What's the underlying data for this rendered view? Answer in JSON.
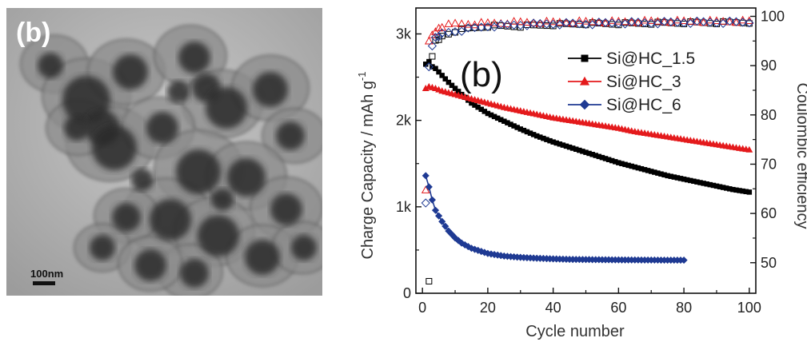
{
  "micrograph": {
    "panel_label": "(b)",
    "scale_bar_label": "100nm"
  },
  "chart_data": {
    "type": "line",
    "panel_label": "(b)",
    "xlabel": "Cycle number",
    "ylabel_left": "Charge Capacity / mAh g",
    "ylabel_left_sup": "-1",
    "ylabel_right": "Coulombic efficiency",
    "xlim": [
      -2,
      102
    ],
    "ylim_left": [
      0,
      3300
    ],
    "ylim_right": [
      43.8,
      101.7
    ],
    "x_ticks": [
      0,
      20,
      40,
      60,
      80,
      100
    ],
    "x_tick_labels": [
      "0",
      "20",
      "40",
      "60",
      "80",
      "100"
    ],
    "y_left_ticks": [
      0,
      1000,
      2000,
      3000
    ],
    "y_left_tick_labels": [
      "0",
      "1k",
      "2k",
      "3k"
    ],
    "y_right_ticks": [
      50,
      60,
      70,
      80,
      90,
      100
    ],
    "y_right_tick_labels": [
      "50",
      "60",
      "70",
      "80",
      "90",
      "100"
    ],
    "legend_position": "top-right",
    "series": [
      {
        "name": "Si@HC_1.5",
        "color": "#000000",
        "marker": "square",
        "capacity": {
          "x": [
            1,
            2,
            3,
            4,
            5,
            6,
            8,
            10,
            12,
            15,
            20,
            25,
            30,
            35,
            40,
            45,
            50,
            55,
            60,
            65,
            70,
            75,
            80,
            85,
            90,
            95,
            100
          ],
          "y": [
            2650,
            2680,
            2620,
            2600,
            2560,
            2520,
            2440,
            2370,
            2300,
            2200,
            2080,
            1990,
            1900,
            1820,
            1750,
            1690,
            1630,
            1570,
            1510,
            1460,
            1410,
            1360,
            1320,
            1280,
            1240,
            1200,
            1170
          ]
        },
        "efficiency": {
          "x": [
            2,
            3,
            4,
            6,
            8,
            10,
            14,
            20,
            30,
            40,
            50,
            60,
            70,
            80,
            90,
            100
          ],
          "y": [
            46,
            92,
            95,
            96,
            96.5,
            97,
            97.5,
            98,
            98,
            98.3,
            98.5,
            98.5,
            98.6,
            98.7,
            98.7,
            98.8
          ]
        }
      },
      {
        "name": "Si@HC_3",
        "color": "#e41a1c",
        "marker": "triangle",
        "capacity": {
          "x": [
            1,
            2,
            4,
            6,
            8,
            10,
            15,
            20,
            25,
            30,
            35,
            40,
            45,
            50,
            55,
            60,
            65,
            70,
            75,
            80,
            85,
            90,
            95,
            100
          ],
          "y": [
            2370,
            2390,
            2370,
            2340,
            2320,
            2300,
            2250,
            2200,
            2150,
            2110,
            2070,
            2030,
            2000,
            1970,
            1940,
            1910,
            1870,
            1840,
            1810,
            1780,
            1750,
            1720,
            1690,
            1660
          ]
        },
        "efficiency": {
          "x": [
            1,
            2,
            4,
            6,
            10,
            15,
            20,
            30,
            40,
            50,
            60,
            70,
            80,
            90,
            100
          ],
          "y": [
            65,
            95,
            97,
            98,
            98.5,
            98.5,
            98.6,
            98.8,
            98.8,
            98.9,
            98.9,
            99,
            99,
            99,
            99
          ]
        }
      },
      {
        "name": "Si@HC_6",
        "color": "#1f3a93",
        "marker": "diamond",
        "capacity": {
          "x": [
            1,
            2,
            3,
            4,
            6,
            8,
            10,
            12,
            15,
            20,
            25,
            30,
            35,
            40,
            45,
            50,
            55,
            60,
            65,
            70,
            75,
            80
          ],
          "y": [
            1360,
            1230,
            1080,
            960,
            830,
            720,
            640,
            580,
            520,
            460,
            430,
            415,
            405,
            398,
            392,
            390,
            388,
            386,
            385,
            384,
            383,
            383
          ]
        },
        "efficiency": {
          "x": [
            1,
            2,
            3,
            4,
            6,
            10,
            15,
            20,
            30,
            40,
            50,
            60,
            70,
            80,
            90,
            100
          ],
          "y": [
            62,
            90,
            94,
            95.5,
            96.5,
            97,
            97.5,
            98,
            98.3,
            98.5,
            98.5,
            98.7,
            98.7,
            98.8,
            98.8,
            98.8
          ]
        }
      }
    ]
  }
}
